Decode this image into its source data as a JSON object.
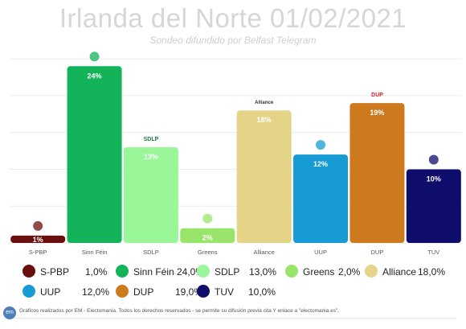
{
  "header": {
    "title": "Irlanda del Norte 01/02/2021",
    "subtitle": "Sondeo difundido por Belfast Telegram"
  },
  "chart_data": {
    "type": "bar",
    "title": "Irlanda del Norte 01/02/2021",
    "subtitle": "Sondeo difundido por Belfast Telegram",
    "categories": [
      "S-PBP",
      "Sinn Féin",
      "SDLP",
      "Greens",
      "Alliance",
      "UUP",
      "DUP",
      "TUV"
    ],
    "values": [
      1.0,
      24.0,
      13.0,
      2.0,
      18.0,
      12.0,
      19.0,
      10.0
    ],
    "data_labels": [
      "1%",
      "24%",
      "13%",
      "2%",
      "18%",
      "12%",
      "19%",
      "10%"
    ],
    "colors": [
      "#6b0e0e",
      "#13b35a",
      "#99f799",
      "#99e56b",
      "#e3d487",
      "#179bd4",
      "#cd7a1f",
      "#0e0d6b"
    ],
    "logo_text": [
      "",
      "",
      "SDLP",
      "",
      "Alliance",
      "",
      "DUP",
      ""
    ],
    "ylim": [
      0,
      26
    ],
    "grid": true,
    "legend_position": "bottom"
  },
  "legend": [
    {
      "name": "S-PBP",
      "value": "1,0%",
      "color": "#6b0e0e"
    },
    {
      "name": "Sinn Féin",
      "value": "24,0%",
      "color": "#13b35a"
    },
    {
      "name": "SDLP",
      "value": "13,0%",
      "color": "#99f799"
    },
    {
      "name": "Greens",
      "value": "2,0%",
      "color": "#99e56b"
    },
    {
      "name": "Alliance",
      "value": "18,0%",
      "color": "#e3d487"
    },
    {
      "name": "UUP",
      "value": "12,0%",
      "color": "#179bd4"
    },
    {
      "name": "DUP",
      "value": "19,0%",
      "color": "#cd7a1f"
    },
    {
      "name": "TUV",
      "value": "10,0%",
      "color": "#0e0d6b"
    }
  ],
  "footer": {
    "logo": "em",
    "text": "Gráficos realizados por EM - Electomania. Todos los derechos reservados - se permite su difusión previa cita Y enlace a \"electomania.es\"."
  }
}
